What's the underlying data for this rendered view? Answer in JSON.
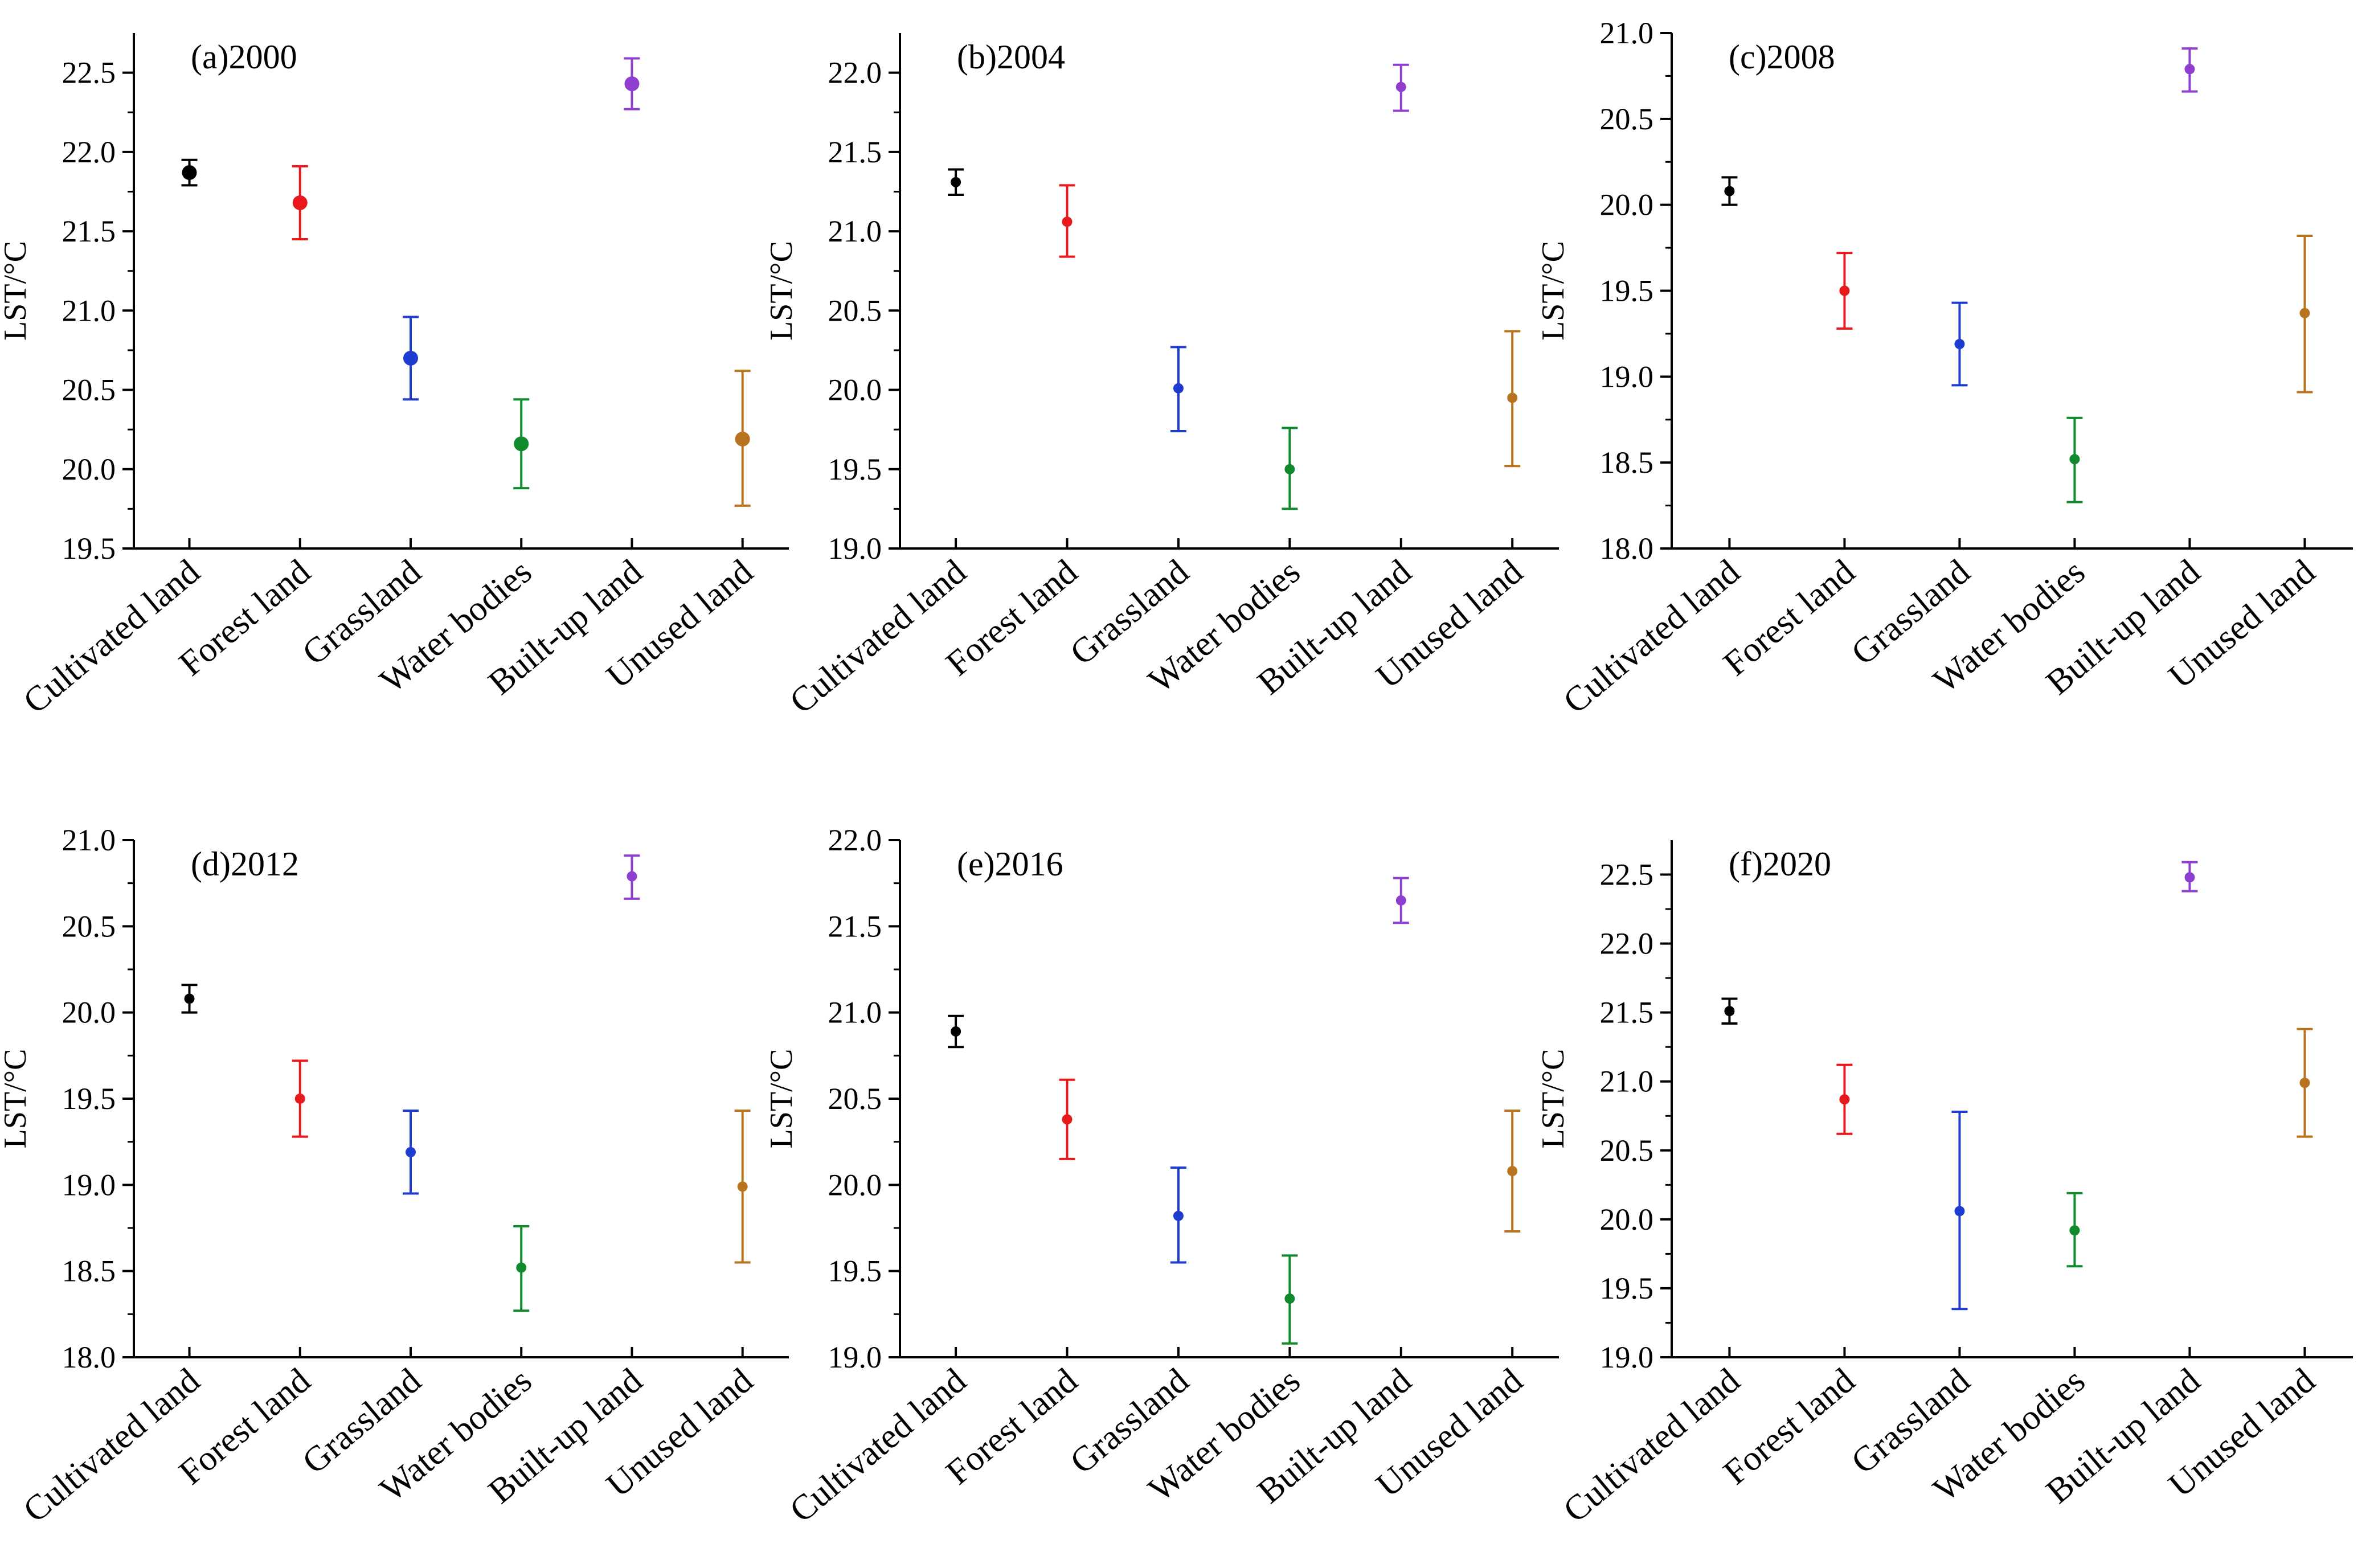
{
  "figure": {
    "ylabel": "LST/°C",
    "categories": [
      "Cultivated land",
      "Forest land",
      "Grassland",
      "Water bodies",
      "Built-up land",
      "Unused land"
    ],
    "colors": [
      "#000000",
      "#e8191d",
      "#1f3cd1",
      "#118a2e",
      "#8e3fd0",
      "#b8731f"
    ]
  },
  "chart_data": [
    {
      "type": "scatter",
      "title": "(a)2000",
      "ylabel": "LST/°C",
      "categories": [
        "Cultivated land",
        "Forest land",
        "Grassland",
        "Water bodies",
        "Built-up land",
        "Unused land"
      ],
      "means": [
        21.87,
        21.68,
        20.7,
        20.16,
        22.43,
        20.19
      ],
      "lower": [
        21.79,
        21.45,
        20.44,
        19.88,
        22.27,
        19.77
      ],
      "upper": [
        21.95,
        21.91,
        20.96,
        20.44,
        22.59,
        20.62
      ],
      "ylim": [
        19.5,
        22.75
      ],
      "yticks": [
        "19.5",
        "20.0",
        "20.5",
        "21.0",
        "21.5",
        "22.0",
        "22.5"
      ]
    },
    {
      "type": "scatter",
      "title": "(b)2004",
      "ylabel": "LST/°C",
      "categories": [
        "Cultivated land",
        "Forest land",
        "Grassland",
        "Water bodies",
        "Built-up land",
        "Unused land"
      ],
      "means": [
        21.31,
        21.06,
        20.01,
        19.5,
        21.91,
        19.95
      ],
      "lower": [
        21.23,
        20.84,
        19.74,
        19.25,
        21.76,
        19.52
      ],
      "upper": [
        21.39,
        21.29,
        20.27,
        19.76,
        22.05,
        20.37
      ],
      "ylim": [
        19.0,
        22.25
      ],
      "yticks": [
        "19.0",
        "19.5",
        "20.0",
        "20.5",
        "21.0",
        "21.5",
        "22.0"
      ]
    },
    {
      "type": "scatter",
      "title": "(c)2008",
      "ylabel": "LST/°C",
      "categories": [
        "Cultivated land",
        "Forest land",
        "Grassland",
        "Water bodies",
        "Built-up land",
        "Unused land"
      ],
      "means": [
        20.08,
        19.5,
        19.19,
        18.52,
        20.79,
        19.37
      ],
      "lower": [
        20.0,
        19.28,
        18.95,
        18.27,
        20.66,
        18.91
      ],
      "upper": [
        20.16,
        19.72,
        19.43,
        18.76,
        20.91,
        19.82
      ],
      "ylim": [
        18.0,
        21.0
      ],
      "yticks": [
        "18.0",
        "18.5",
        "19.0",
        "19.5",
        "20.0",
        "20.5",
        "21.0"
      ]
    },
    {
      "type": "scatter",
      "title": "(d)2012",
      "ylabel": "LST/°C",
      "categories": [
        "Cultivated land",
        "Forest land",
        "Grassland",
        "Water bodies",
        "Built-up land",
        "Unused land"
      ],
      "means": [
        20.08,
        19.5,
        19.19,
        18.52,
        20.79,
        18.99
      ],
      "lower": [
        20.0,
        19.28,
        18.95,
        18.27,
        20.66,
        18.55
      ],
      "upper": [
        20.16,
        19.72,
        19.43,
        18.76,
        20.91,
        19.43
      ],
      "ylim": [
        18.0,
        21.0
      ],
      "yticks": [
        "18.0",
        "18.5",
        "19.0",
        "19.5",
        "20.0",
        "20.5",
        "21.0"
      ]
    },
    {
      "type": "scatter",
      "title": "(e)2016",
      "ylabel": "LST/°C",
      "categories": [
        "Cultivated land",
        "Forest land",
        "Grassland",
        "Water bodies",
        "Built-up land",
        "Unused land"
      ],
      "means": [
        20.89,
        20.38,
        19.82,
        19.34,
        21.65,
        20.08
      ],
      "lower": [
        20.8,
        20.15,
        19.55,
        19.08,
        21.52,
        19.73
      ],
      "upper": [
        20.98,
        20.61,
        20.1,
        19.59,
        21.78,
        20.43
      ],
      "ylim": [
        19.0,
        22.0
      ],
      "yticks": [
        "19.0",
        "19.5",
        "20.0",
        "20.5",
        "21.0",
        "21.5",
        "22.0"
      ]
    },
    {
      "type": "scatter",
      "title": "(f)2020",
      "ylabel": "LST/°C",
      "categories": [
        "Cultivated land",
        "Forest land",
        "Grassland",
        "Water bodies",
        "Built-up land",
        "Unused land"
      ],
      "means": [
        21.51,
        20.87,
        20.06,
        19.92,
        22.48,
        20.99
      ],
      "lower": [
        21.42,
        20.62,
        19.35,
        19.66,
        22.38,
        20.6
      ],
      "upper": [
        21.6,
        21.12,
        20.78,
        20.19,
        22.59,
        21.38
      ],
      "ylim": [
        19.0,
        22.75
      ],
      "yticks": [
        "19.0",
        "19.5",
        "20.0",
        "20.5",
        "21.0",
        "21.5",
        "22.0",
        "22.5"
      ]
    }
  ]
}
